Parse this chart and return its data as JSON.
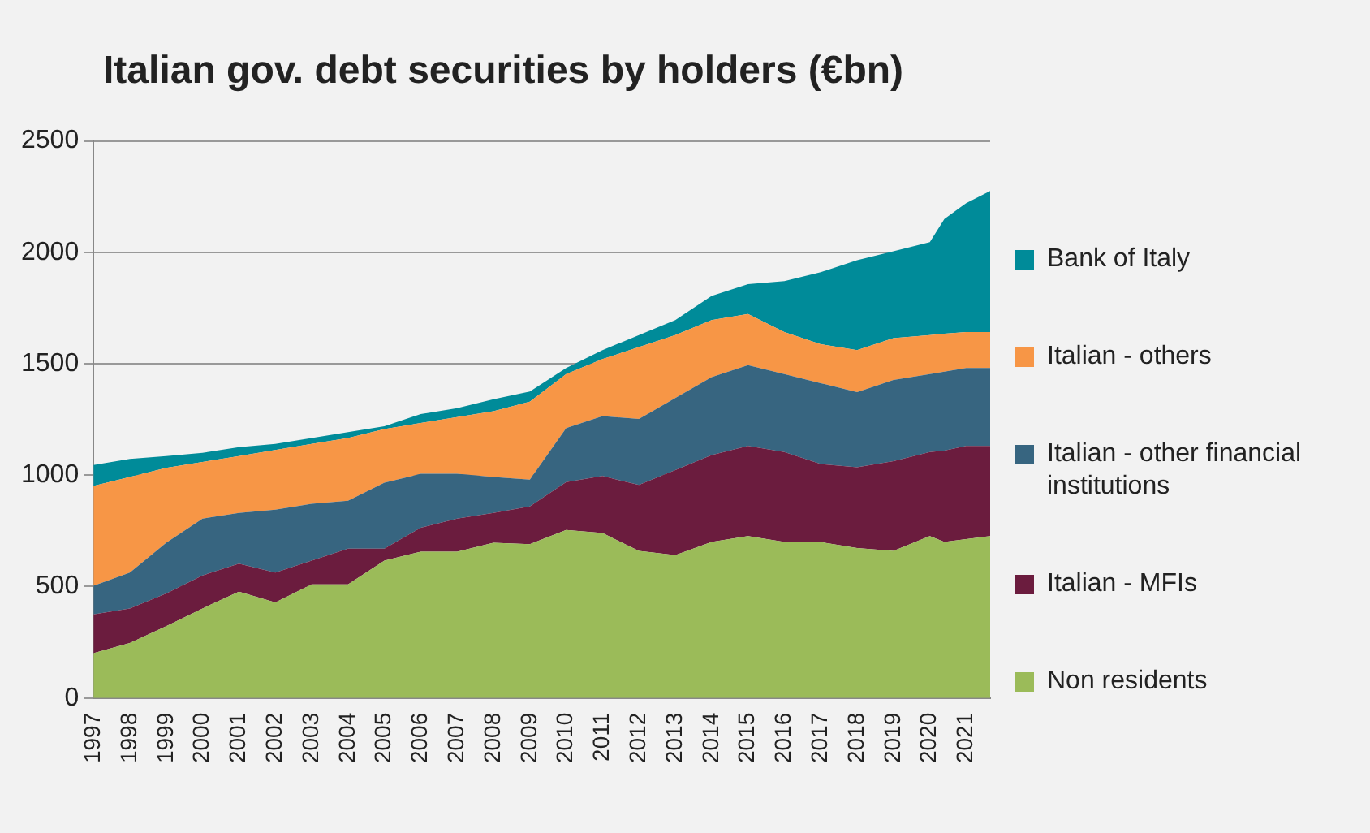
{
  "chart_data": {
    "type": "area",
    "title": "Italian gov. debt securities by holders (€bn)",
    "stacked": true,
    "grid": "y",
    "legend": "right",
    "x": [
      1997,
      1998,
      1999,
      2000,
      2001,
      2002,
      2003,
      2004,
      2005,
      2006,
      2007,
      2008,
      2009,
      2010,
      2011,
      2012,
      2013,
      2014,
      2015,
      2016,
      2017,
      2018,
      2019,
      2020,
      2020.4,
      2021,
      2021.66
    ],
    "xlim": [
      1997,
      2021.66
    ],
    "xticks": [
      1997,
      1998,
      1999,
      2000,
      2001,
      2002,
      2003,
      2004,
      2005,
      2006,
      2007,
      2008,
      2009,
      2010,
      2011,
      2012,
      2013,
      2014,
      2015,
      2016,
      2017,
      2018,
      2019,
      2020,
      2021
    ],
    "ylim": [
      0,
      2500
    ],
    "yticks": [
      0,
      500,
      1000,
      1500,
      2000,
      2500
    ],
    "series": [
      {
        "name": "Non residents",
        "color": "#9bbb59",
        "values": [
          201,
          247,
          322,
          402,
          477,
          429,
          510,
          510,
          617,
          657,
          657,
          697,
          690,
          754,
          740,
          660,
          641,
          700,
          727,
          700,
          700,
          673,
          660,
          727,
          700,
          713,
          727
        ]
      },
      {
        "name": "Italian - MFIs",
        "color": "#6b1c3e",
        "values": [
          174,
          155,
          147,
          148,
          126,
          134,
          107,
          160,
          53,
          107,
          148,
          134,
          170,
          215,
          256,
          296,
          382,
          390,
          404,
          404,
          350,
          363,
          403,
          377,
          410,
          418,
          404
        ]
      },
      {
        "name": "Italian - other financial institutions",
        "color": "#376580",
        "values": [
          129,
          161,
          228,
          255,
          228,
          282,
          255,
          215,
          296,
          242,
          201,
          161,
          120,
          242,
          269,
          296,
          323,
          350,
          363,
          350,
          363,
          337,
          364,
          350,
          355,
          350,
          350
        ]
      },
      {
        "name": "Italian - others",
        "color": "#f79646",
        "values": [
          448,
          429,
          336,
          254,
          255,
          268,
          268,
          282,
          241,
          228,
          255,
          295,
          350,
          243,
          256,
          323,
          283,
          256,
          229,
          188,
          175,
          188,
          188,
          175,
          170,
          161,
          161
        ]
      },
      {
        "name": "Bank of Italy",
        "color": "#008b99",
        "values": [
          94,
          81,
          53,
          41,
          40,
          27,
          27,
          26,
          13,
          40,
          40,
          54,
          45,
          27,
          40,
          54,
          67,
          108,
          134,
          229,
          323,
          404,
          390,
          417,
          515,
          579,
          633
        ]
      }
    ]
  }
}
